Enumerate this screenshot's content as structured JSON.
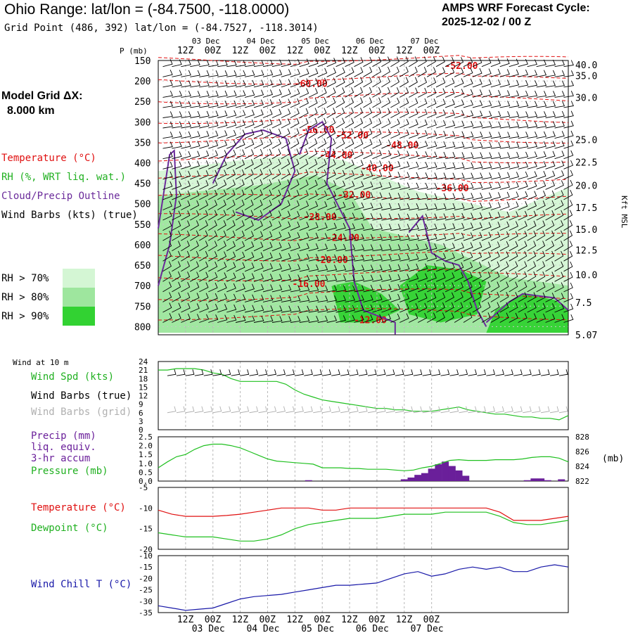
{
  "header": {
    "title": "Ohio Range:  lat/lon = (-84.7500, -118.0000)",
    "subtitle": "Grid Point (486, 392) lat/lon = (-84.7527, -118.3014)",
    "cycle_line1": "AMPS WRF Forecast Cycle:",
    "cycle_line2": "2025-12-02 / 00  Z"
  },
  "model_grid": {
    "line1": "Model Grid ΔX:",
    "line2": "8.000 km"
  },
  "legend": {
    "temperature": "Temperature (°C)",
    "rh": "RH (%, WRT liq. wat.)",
    "cloud": "Cloud/Precip Outline",
    "wind": "Wind Barbs (kts) (true)",
    "rh70": "RH > 70%",
    "rh80": "RH > 80%",
    "rh90": "RH > 90%",
    "colors": {
      "temperature": "#e01010",
      "rh": "#20b020",
      "cloud": "#6a2a9a",
      "wind": "#000000",
      "rh70": "#d4f6d4",
      "rh80": "#9ee69e",
      "rh90": "#32d232",
      "dewpoint": "#20c020",
      "windchill": "#1818a8",
      "precip": "#6a1f9a",
      "gridbarb": "#b0b0b0"
    }
  },
  "panel_labels": {
    "wind10m_title": "Wind at 10 m",
    "wind_spd": "Wind Spd (kts)",
    "wind_barbs_true": "Wind Barbs (true)",
    "wind_barbs_grid": "Wind Barbs (grid)",
    "precip1": "Precip (mm)",
    "precip2": "liq. equiv.",
    "precip3": "3-hr accum",
    "pressure": "Pressure (mb)",
    "temperature": "Temperature (°C)",
    "dewpoint": "Dewpoint (°C)",
    "windchill": "Wind Chill T (°C)"
  },
  "chart_data": [
    {
      "type": "heatmap",
      "name": "cross-section",
      "x_tick_labels": [
        "12Z",
        "00Z",
        "12Z",
        "00Z",
        "12Z",
        "00Z",
        "12Z",
        "00Z",
        "12Z",
        "00Z"
      ],
      "x_date_labels": [
        "03 Dec",
        "04 Dec",
        "05 Dec",
        "06 Dec",
        "07 Dec"
      ],
      "x_date_tick_index": [
        1,
        3,
        5,
        7,
        9
      ],
      "hours": [
        -24,
        156
      ],
      "ylabel_left": "P (mb)",
      "y_ticks": [
        150,
        200,
        250,
        300,
        350,
        400,
        450,
        500,
        550,
        600,
        650,
        700,
        750,
        800
      ],
      "ylim": [
        150,
        820
      ],
      "ylabel_right": "Kft MSL",
      "right_ticks": [
        {
          "label": "40.0",
          "p": 160
        },
        {
          "label": "35.0",
          "p": 187
        },
        {
          "label": "30.0",
          "p": 240
        },
        {
          "label": "25.0",
          "p": 343
        },
        {
          "label": "22.5",
          "p": 398
        },
        {
          "label": "20.0",
          "p": 455
        },
        {
          "label": "17.5",
          "p": 509
        },
        {
          "label": "15.0",
          "p": 562
        },
        {
          "label": "12.5",
          "p": 613
        },
        {
          "label": "10.0",
          "p": 673
        },
        {
          "label": "7.5",
          "p": 741
        },
        {
          "label": "5.07",
          "p": 820
        }
      ],
      "temperature_labels": [
        {
          "text": "-52.00",
          "t": 108,
          "p": 162
        },
        {
          "text": "-60.00",
          "t": 42,
          "p": 206
        },
        {
          "text": "-56.00",
          "t": 45,
          "p": 318
        },
        {
          "text": "-52.00",
          "t": 60,
          "p": 332
        },
        {
          "text": "-48.00",
          "t": 82,
          "p": 356
        },
        {
          "text": "-44.00",
          "t": 53,
          "p": 380
        },
        {
          "text": "-40.00",
          "t": 71,
          "p": 412
        },
        {
          "text": "-36.00",
          "t": 104,
          "p": 461
        },
        {
          "text": "-32.00",
          "t": 61,
          "p": 477
        },
        {
          "text": "-28.00",
          "t": 46,
          "p": 531
        },
        {
          "text": "-24.00",
          "t": 56,
          "p": 582
        },
        {
          "text": "-20.00",
          "t": 51,
          "p": 636
        },
        {
          "text": "-16.00",
          "t": 41,
          "p": 695
        },
        {
          "text": "-12.00",
          "t": 68,
          "p": 783
        }
      ]
    },
    {
      "type": "line",
      "name": "wind10m",
      "ylim": [
        0,
        24
      ],
      "y_ticks": [
        0,
        3,
        6,
        9,
        12,
        15,
        18,
        21,
        24
      ],
      "series": [
        {
          "label": "wind_spd",
          "t": [
            -24,
            -20,
            -16,
            -12,
            -8,
            -4,
            0,
            4,
            8,
            12,
            16,
            20,
            24,
            28,
            32,
            36,
            40,
            44,
            48,
            52,
            56,
            60,
            64,
            68,
            72,
            76,
            80,
            84,
            88,
            92,
            96,
            100,
            104,
            108,
            112,
            116,
            120,
            124,
            128,
            132,
            136,
            140,
            144,
            148,
            152,
            156
          ],
          "values": [
            21,
            21,
            21.5,
            21.5,
            21.5,
            21,
            20,
            19.5,
            18,
            17,
            17,
            17,
            17,
            17,
            16,
            14,
            12.5,
            11.5,
            10.5,
            10,
            9.5,
            9,
            8.5,
            8,
            7.5,
            7.5,
            7,
            7,
            6.5,
            6.5,
            6.5,
            7,
            7.5,
            8,
            7,
            6.5,
            6,
            5.5,
            5.5,
            5,
            4.5,
            4.5,
            4,
            4,
            3.5,
            5
          ]
        }
      ]
    },
    {
      "type": "bar",
      "name": "precip",
      "ylim": [
        0,
        2.5
      ],
      "y_ticks": [
        "0.0",
        "0.5",
        "1.0",
        "1.5",
        "2.0",
        "2.5"
      ],
      "right_ticks": [
        "822",
        "824",
        "826",
        "828"
      ],
      "right_unit": "(mb)",
      "bars": {
        "t": [
          42,
          84,
          87,
          90,
          93,
          96,
          99,
          102,
          105,
          108,
          111,
          138,
          141,
          144,
          147,
          153
        ],
        "values": [
          0.05,
          0.1,
          0.2,
          0.35,
          0.45,
          0.7,
          0.95,
          1.1,
          0.85,
          0.6,
          0.3,
          0.05,
          0.15,
          0.15,
          0.05,
          0.1
        ]
      },
      "pressure": {
        "t": [
          -24,
          -20,
          -16,
          -12,
          -8,
          -4,
          0,
          4,
          8,
          12,
          16,
          20,
          24,
          28,
          32,
          36,
          40,
          44,
          48,
          52,
          56,
          60,
          64,
          68,
          72,
          76,
          80,
          84,
          88,
          92,
          96,
          100,
          104,
          108,
          112,
          116,
          120,
          124,
          128,
          132,
          136,
          140,
          144,
          148,
          152,
          156
        ],
        "values": [
          823.8,
          824.6,
          825.3,
          825.6,
          826.3,
          826.8,
          827.0,
          827.0,
          826.8,
          826.5,
          826.0,
          825.5,
          825.0,
          824.7,
          824.6,
          824.5,
          824.4,
          824.3,
          823.8,
          823.8,
          823.8,
          823.7,
          823.7,
          823.6,
          823.6,
          823.6,
          823.5,
          823.4,
          823.5,
          823.8,
          824.0,
          824.4,
          824.8,
          824.9,
          824.8,
          824.8,
          824.8,
          824.9,
          824.9,
          824.9,
          825.0,
          825.2,
          825.3,
          825.3,
          825.1,
          824.6
        ]
      }
    },
    {
      "type": "line",
      "name": "temperature-dewpoint",
      "ylim": [
        -20,
        -5
      ],
      "y_ticks": [
        -20,
        -15,
        -10,
        -5
      ],
      "series": [
        {
          "label": "temperature",
          "t": [
            -24,
            -18,
            -12,
            -6,
            0,
            6,
            12,
            18,
            24,
            30,
            36,
            42,
            48,
            54,
            60,
            66,
            72,
            78,
            84,
            90,
            96,
            102,
            108,
            114,
            120,
            126,
            132,
            138,
            144,
            150,
            156
          ],
          "values": [
            -10.5,
            -11.5,
            -12,
            -12,
            -12,
            -11.8,
            -11.5,
            -11,
            -10.5,
            -10,
            -10,
            -10,
            -10.5,
            -10.5,
            -10,
            -10,
            -10,
            -10,
            -10,
            -10,
            -10,
            -10,
            -10,
            -10,
            -10,
            -11,
            -13,
            -13,
            -13,
            -12.5,
            -12
          ]
        },
        {
          "label": "dewpoint",
          "t": [
            -24,
            -18,
            -12,
            -6,
            0,
            6,
            12,
            18,
            24,
            30,
            36,
            42,
            48,
            54,
            60,
            66,
            72,
            78,
            84,
            90,
            96,
            102,
            108,
            114,
            120,
            126,
            132,
            138,
            144,
            150,
            156
          ],
          "values": [
            -16,
            -16.5,
            -17,
            -17,
            -17,
            -17.5,
            -18,
            -18,
            -17.5,
            -16.5,
            -15,
            -14,
            -13.5,
            -13,
            -12.5,
            -12.5,
            -12.5,
            -12,
            -11.5,
            -11.5,
            -11.5,
            -11,
            -11,
            -11,
            -11,
            -12,
            -13.5,
            -14,
            -14,
            -13.5,
            -13
          ]
        }
      ]
    },
    {
      "type": "line",
      "name": "windchill",
      "ylim": [
        -35,
        -10
      ],
      "y_ticks": [
        -35,
        -30,
        -25,
        -20,
        -15,
        -10
      ],
      "series": [
        {
          "label": "windchill",
          "t": [
            -24,
            -18,
            -12,
            -6,
            0,
            6,
            12,
            18,
            24,
            30,
            36,
            42,
            48,
            54,
            60,
            66,
            72,
            78,
            84,
            90,
            96,
            102,
            108,
            114,
            120,
            126,
            132,
            138,
            144,
            150,
            156
          ],
          "values": [
            -32,
            -33,
            -34,
            -33.5,
            -33,
            -31,
            -29,
            -28,
            -27.5,
            -27,
            -26,
            -25,
            -24,
            -23,
            -23,
            -22.5,
            -22,
            -20,
            -18,
            -17,
            -19,
            -18,
            -16,
            -15,
            -16,
            -15,
            -17,
            -17,
            -15,
            -14,
            -15
          ]
        }
      ]
    }
  ]
}
